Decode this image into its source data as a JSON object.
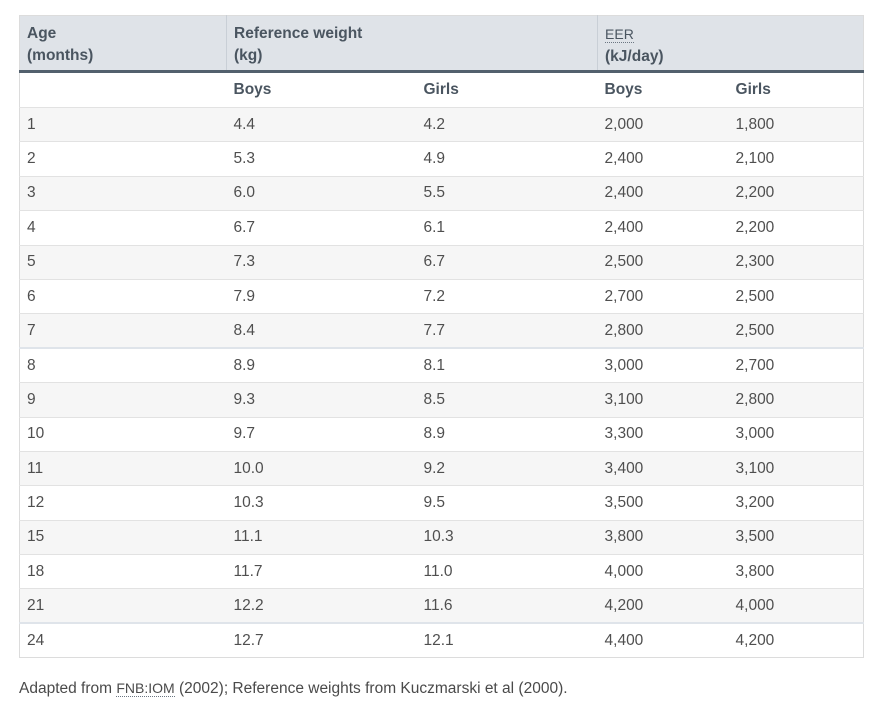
{
  "header": {
    "age_line1": "Age",
    "age_line2": "(months)",
    "ref_line1": "Reference weight",
    "ref_line2": "(kg)",
    "eer_abbr": "EER",
    "eer_unit": "(kJ/day)"
  },
  "subheader": {
    "boys_weight": "Boys",
    "girls_weight": "Girls",
    "boys_eer": "Boys",
    "girls_eer": "Girls"
  },
  "rows": [
    {
      "age": "1",
      "boys_kg": "4.4",
      "girls_kg": "4.2",
      "boys_eer": "2,000",
      "girls_eer": "1,800"
    },
    {
      "age": "2",
      "boys_kg": "5.3",
      "girls_kg": "4.9",
      "boys_eer": "2,400",
      "girls_eer": "2,100"
    },
    {
      "age": "3",
      "boys_kg": "6.0",
      "girls_kg": "5.5",
      "boys_eer": "2,400",
      "girls_eer": "2,200"
    },
    {
      "age": "4",
      "boys_kg": "6.7",
      "girls_kg": "6.1",
      "boys_eer": "2,400",
      "girls_eer": "2,200"
    },
    {
      "age": "5",
      "boys_kg": "7.3",
      "girls_kg": "6.7",
      "boys_eer": "2,500",
      "girls_eer": "2,300"
    },
    {
      "age": "6",
      "boys_kg": "7.9",
      "girls_kg": "7.2",
      "boys_eer": "2,700",
      "girls_eer": "2,500"
    },
    {
      "age": "7",
      "boys_kg": "8.4",
      "girls_kg": "7.7",
      "boys_eer": "2,800",
      "girls_eer": "2,500"
    },
    {
      "age": "8",
      "boys_kg": "8.9",
      "girls_kg": "8.1",
      "boys_eer": "3,000",
      "girls_eer": "2,700"
    },
    {
      "age": "9",
      "boys_kg": "9.3",
      "girls_kg": "8.5",
      "boys_eer": "3,100",
      "girls_eer": "2,800"
    },
    {
      "age": "10",
      "boys_kg": "9.7",
      "girls_kg": "8.9",
      "boys_eer": "3,300",
      "girls_eer": "3,000"
    },
    {
      "age": "11",
      "boys_kg": "10.0",
      "girls_kg": "9.2",
      "boys_eer": "3,400",
      "girls_eer": "3,100"
    },
    {
      "age": "12",
      "boys_kg": "10.3",
      "girls_kg": "9.5",
      "boys_eer": "3,500",
      "girls_eer": "3,200"
    },
    {
      "age": "15",
      "boys_kg": "11.1",
      "girls_kg": "10.3",
      "boys_eer": "3,800",
      "girls_eer": "3,500"
    },
    {
      "age": "18",
      "boys_kg": "11.7",
      "girls_kg": "11.0",
      "boys_eer": "4,000",
      "girls_eer": "3,800"
    },
    {
      "age": "21",
      "boys_kg": "12.2",
      "girls_kg": "11.6",
      "boys_eer": "4,200",
      "girls_eer": "4,000"
    },
    {
      "age": "24",
      "boys_kg": "12.7",
      "girls_kg": "12.1",
      "boys_eer": "4,400",
      "girls_eer": "4,200"
    }
  ],
  "caption": {
    "prefix": "Adapted from ",
    "fnb_abbr": "FNB:IOM",
    "suffix": " (2002); Reference weights from Kuczmarski et al (2000)."
  },
  "colors": {
    "header_bg": "#dfe3e8",
    "header_rule": "#52606d",
    "header_text": "#4a5560",
    "stripe": "#f6f6f6"
  }
}
